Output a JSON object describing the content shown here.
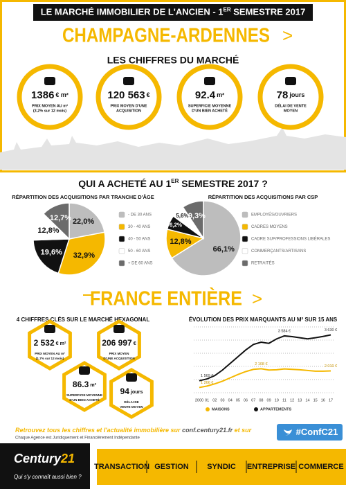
{
  "header": {
    "title_before": "LE MARCHÉ IMMOBILIER DE L'ANCIEN - 1",
    "title_sup": "ER",
    "title_after": " SEMESTRE 2017"
  },
  "region": {
    "title": "CHAMPAGNE-ARDENNES",
    "arrow": ">",
    "subtitle": "LES CHIFFRES DU MARCHÉ",
    "figures": [
      {
        "value": "1386",
        "unit": "€ m²",
        "lines": [
          "PRIX MOYEN AU m²",
          "(3,2% sur 12 mois)"
        ]
      },
      {
        "value": "120 563",
        "unit": "€",
        "lines": [
          "PRIX MOYEN D'UNE",
          "ACQUISITION"
        ]
      },
      {
        "value": "92.4",
        "unit": "m²",
        "lines": [
          "SUPERFICIE MOYENNE",
          "D'UN BIEN ACHETÉ"
        ]
      },
      {
        "value": "78",
        "unit": "jours",
        "lines": [
          "DÉLAI DE VENTE",
          "MOYEN"
        ]
      }
    ]
  },
  "buyers": {
    "title_before": "QUI A ACHETÉ AU 1",
    "title_sup": "ER",
    "title_after": " SEMESTRE 2017 ?"
  },
  "chart_data": [
    {
      "type": "pie",
      "title": "RÉPARTITION DES ACQUISITIONS PAR TRANCHE D'ÂGE",
      "categories": [
        "- DE 30 ANS",
        "30 - 40 ANS",
        "40 - 50 ANS",
        "50 - 60 ANS",
        "+ DE 60 ANS"
      ],
      "values": [
        22.0,
        32.9,
        19.6,
        12.8,
        12.7
      ],
      "value_labels": [
        "22,0%",
        "32,9%",
        "19,6%",
        "12,8%",
        "12,7%"
      ],
      "colors": [
        "#bdbdbd",
        "#f5b800",
        "#111111",
        "#ffffff",
        "#6b6b6b"
      ]
    },
    {
      "type": "pie",
      "title": "RÉPARTITION DES ACQUISITIONS PAR CSP",
      "categories": [
        "EMPLOYÉS/OUVRIERS",
        "CADRES MOYENS",
        "CADRE SUP/PROFESSIONS LIBÉRALES",
        "COMMERÇANTS/ARTISANS",
        "RETRAITÉS"
      ],
      "values": [
        66.1,
        12.8,
        6.2,
        5.6,
        9.3
      ],
      "value_labels": [
        "66,1%",
        "12,8%",
        "6,2%",
        "5,6%",
        "9,3%"
      ],
      "colors": [
        "#bdbdbd",
        "#f5b800",
        "#111111",
        "#ffffff",
        "#6b6b6b"
      ]
    },
    {
      "type": "line",
      "title": "ÉVOLUTION DES PRIX MARQUANTS AU M² SUR 15 ANS",
      "categories": [
        "2000",
        "01",
        "02",
        "03",
        "04",
        "05",
        "06",
        "07",
        "08",
        "09",
        "10",
        "11",
        "12",
        "13",
        "14",
        "15",
        "16",
        "17"
      ],
      "ylim": [
        1000,
        3800
      ],
      "series": [
        {
          "name": "MAISONS",
          "color": "#f5b800",
          "values": [
            1266,
            1330,
            1430,
            1550,
            1700,
            1850,
            1980,
            2080,
            2108,
            2050,
            2060,
            2100,
            2080,
            2060,
            2030,
            2000,
            2000,
            2010
          ],
          "value_labels": [
            "1 266 €",
            null,
            null,
            null,
            null,
            null,
            null,
            null,
            "2 108 €",
            null,
            null,
            null,
            null,
            null,
            null,
            null,
            null,
            "2 010 €"
          ]
        },
        {
          "name": "APPARTEMENTS",
          "color": "#111111",
          "values": [
            1569,
            1650,
            1800,
            2050,
            2350,
            2650,
            2950,
            3200,
            3300,
            3250,
            3450,
            3584,
            3550,
            3500,
            3450,
            3500,
            3560,
            3630
          ],
          "value_labels": [
            "1 569 €",
            null,
            null,
            null,
            null,
            null,
            null,
            null,
            null,
            null,
            null,
            "3 584 €",
            null,
            null,
            null,
            null,
            null,
            "3 630 €"
          ]
        }
      ]
    }
  ],
  "france": {
    "title": "FRANCE ENTIÈRE",
    "arrow": ">",
    "subtitle": "4 CHIFFRES CLÉS SUR LE MARCHÉ HEXAGONAL",
    "figures": [
      {
        "value": "2 532",
        "unit": "€ m²",
        "lines": [
          "PRIX MOYEN AU m²",
          "(1,7% sur 12 mois)"
        ]
      },
      {
        "value": "206 997",
        "unit": "€",
        "lines": [
          "PRIX MOYEN",
          "D'UNE ACQUISITION"
        ]
      },
      {
        "value": "86.3",
        "unit": "m²",
        "lines": [
          "SUPERFICIE MOYENNE",
          "D'UN BIEN ACHETÉ"
        ]
      },
      {
        "value": "94",
        "unit": "jours",
        "lines": [
          "DÉLAI DE",
          "VENTE MOYEN"
        ]
      }
    ]
  },
  "footer": {
    "text": "Retrouvez tous les chiffres et l'actualité immobilière sur ",
    "link": "conf.century21.fr",
    "text_after": " et sur",
    "hashtag": "#ConfC21",
    "disclaimer": "Chaque Agence est Juridiquement et Financièrement Indépendante",
    "brand": "Century",
    "brand_num": "21",
    "slogan": "Qui s'y connaît aussi bien ?",
    "services": [
      "TRANSACTION",
      "GESTION",
      "SYNDIC",
      "ENTREPRISE",
      "COMMERCE"
    ]
  }
}
